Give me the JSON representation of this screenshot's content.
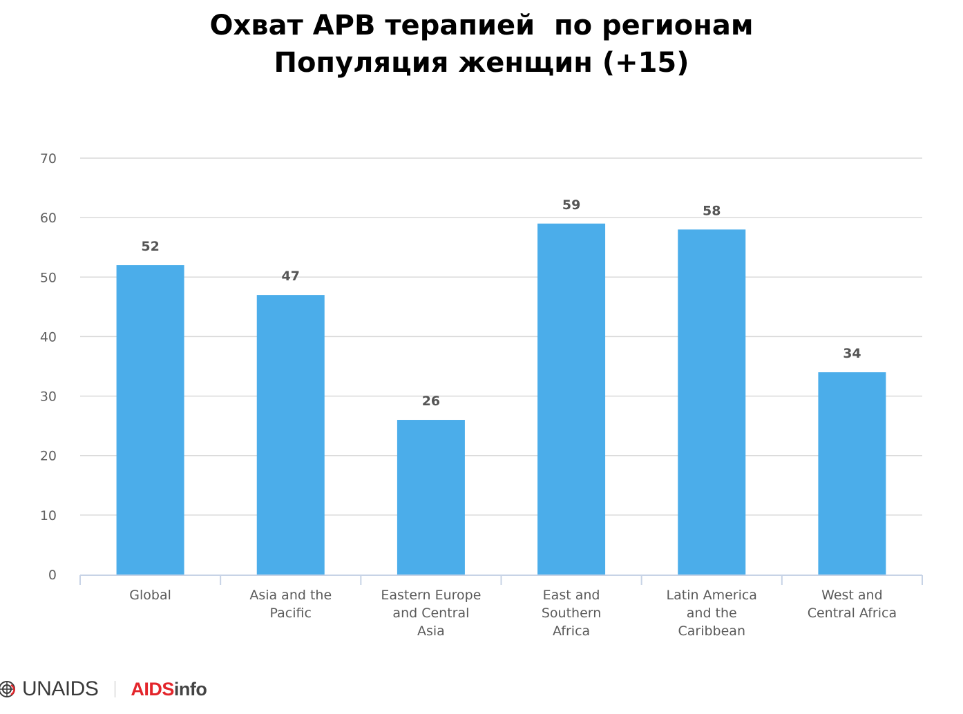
{
  "title": {
    "line1": "Охват АРВ терапией  по регионам",
    "line2": "Популяция женщин (+15)"
  },
  "chart_data": {
    "type": "bar",
    "categories": [
      [
        "Global"
      ],
      [
        "Asia and the",
        "Pacific"
      ],
      [
        "Eastern Europe",
        "and Central",
        "Asia"
      ],
      [
        "East and",
        "Southern",
        "Africa"
      ],
      [
        "Latin America",
        "and the",
        "Caribbean"
      ],
      [
        "West and",
        "Central Africa"
      ]
    ],
    "values": [
      52,
      47,
      26,
      59,
      58,
      34
    ],
    "data_labels": [
      "52",
      "47",
      "26",
      "59",
      "58",
      "34"
    ],
    "ylim": [
      0,
      70
    ],
    "yticks": [
      0,
      10,
      20,
      30,
      40,
      50,
      60,
      70
    ],
    "grid": true,
    "legend": "none",
    "bar_color": "#4badea"
  },
  "footer": {
    "logo_text": "UNAIDS",
    "brand_part1": "AIDS",
    "brand_part2": "info"
  }
}
